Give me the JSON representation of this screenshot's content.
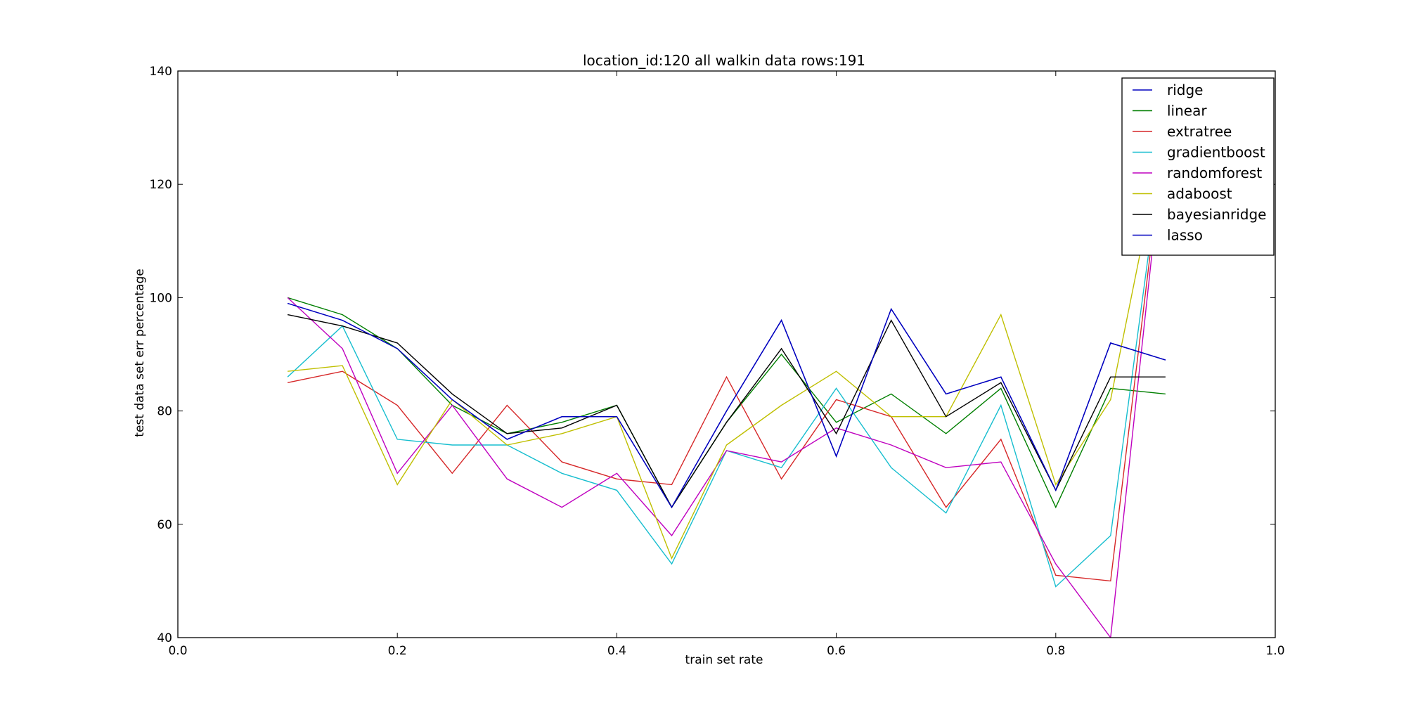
{
  "chart_data": {
    "type": "line",
    "title": "location_id:120  all walkin data rows:191",
    "xlabel": "train set rate",
    "ylabel": "test data set err percentage",
    "xlim": [
      0.0,
      1.0
    ],
    "ylim": [
      40,
      140
    ],
    "x_ticks": [
      "0.0",
      "0.2",
      "0.4",
      "0.6",
      "0.8",
      "1.0"
    ],
    "y_ticks": [
      "40",
      "60",
      "80",
      "100",
      "120",
      "140"
    ],
    "grid": false,
    "legend_position": "top-right",
    "x": [
      0.1,
      0.15,
      0.2,
      0.25,
      0.3,
      0.35,
      0.4,
      0.45,
      0.5,
      0.55,
      0.6,
      0.65,
      0.7,
      0.75,
      0.8,
      0.85,
      0.9
    ],
    "series": [
      {
        "name": "ridge",
        "color": "#0000bf",
        "values": [
          99,
          96,
          91,
          82,
          75,
          79,
          79,
          63,
          80,
          96,
          72,
          98,
          83,
          86,
          66,
          92,
          89
        ]
      },
      {
        "name": "linear",
        "color": "#007f00",
        "values": [
          100,
          97,
          91,
          81,
          76,
          78,
          81,
          63,
          78,
          90,
          78,
          83,
          76,
          84,
          63,
          84,
          83
        ]
      },
      {
        "name": "extratree",
        "color": "#d62728",
        "values": [
          85,
          87,
          81,
          69,
          81,
          71,
          68,
          67,
          86,
          68,
          82,
          79,
          63,
          75,
          51,
          50,
          130
        ]
      },
      {
        "name": "gradientboost",
        "color": "#17becf",
        "values": [
          86,
          95,
          75,
          74,
          74,
          69,
          66,
          53,
          73,
          70,
          84,
          70,
          62,
          81,
          49,
          58,
          130
        ]
      },
      {
        "name": "randomforest",
        "color": "#bf00bf",
        "values": [
          100,
          91,
          69,
          81,
          68,
          63,
          69,
          58,
          73,
          71,
          77,
          74,
          70,
          71,
          53,
          40,
          130
        ]
      },
      {
        "name": "adaboost",
        "color": "#bfbf00",
        "values": [
          87,
          88,
          67,
          82,
          74,
          76,
          79,
          54,
          74,
          81,
          87,
          79,
          79,
          97,
          67,
          82,
          130
        ]
      },
      {
        "name": "bayesianridge",
        "color": "#000000",
        "values": [
          97,
          95,
          92,
          83,
          76,
          77,
          81,
          63,
          78,
          91,
          76,
          96,
          79,
          85,
          66,
          86,
          86
        ]
      },
      {
        "name": "lasso",
        "color": "#0000bf",
        "values": [
          99,
          96,
          91,
          82,
          75,
          79,
          79,
          63,
          80,
          96,
          72,
          98,
          83,
          86,
          66,
          92,
          89
        ]
      }
    ]
  }
}
